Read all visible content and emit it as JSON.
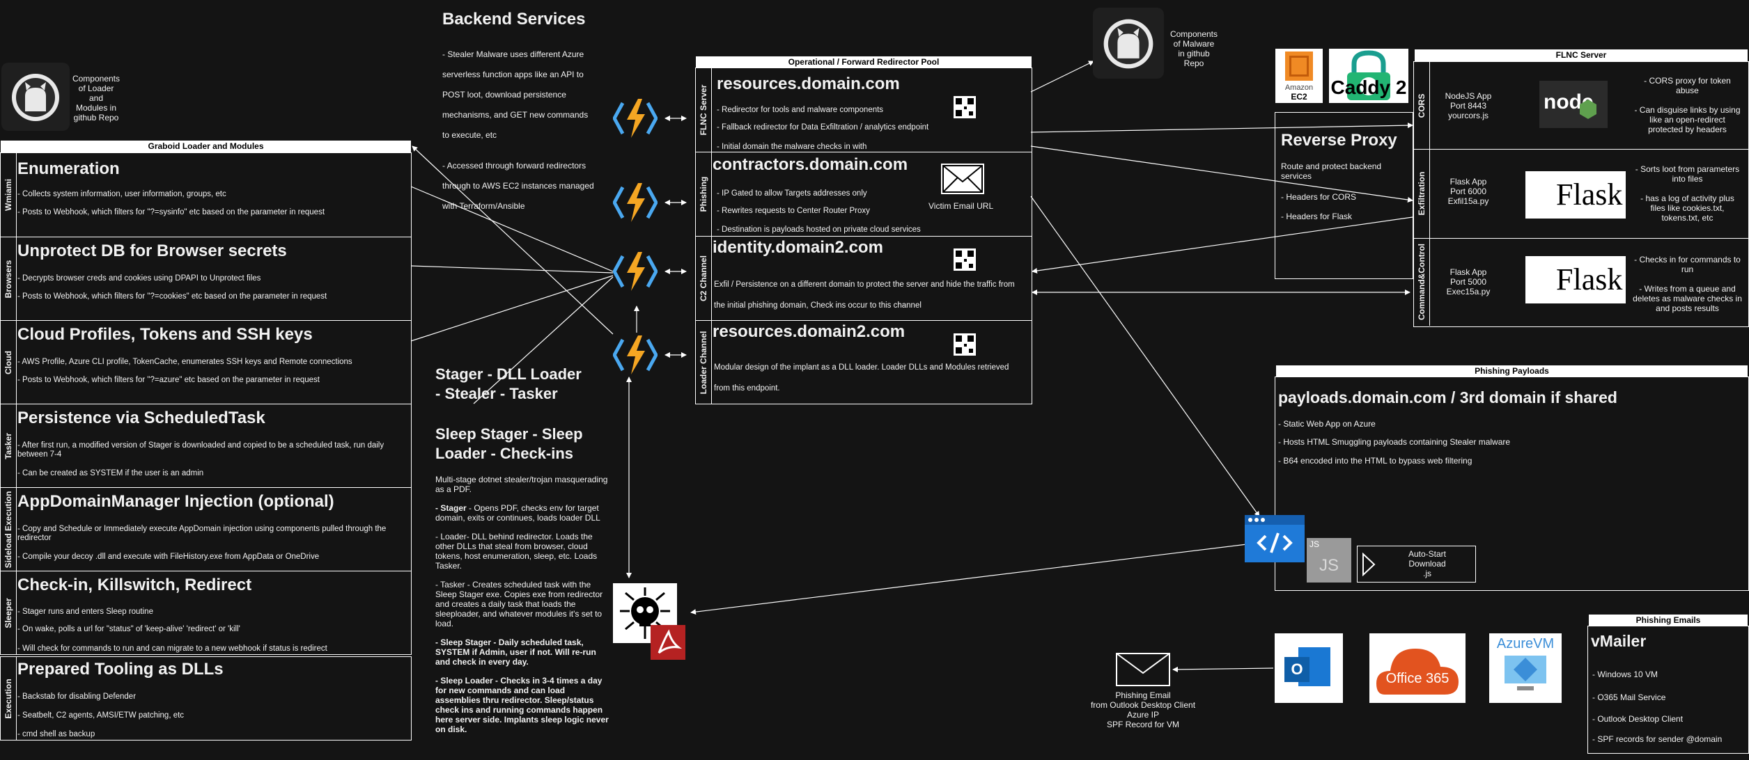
{
  "backend": {
    "title": "Backend Services",
    "lines": [
      "- Stealer Malware uses different Azure",
      "serverless function apps like an API to",
      "POST loot, download persistence",
      "mechanisms, and GET new commands",
      "to execute, etc",
      "- Accessed through forward redirectors",
      "through to AWS EC2 instances managed",
      "with Terraform/Ansible"
    ]
  },
  "repo_loader": {
    "lines": [
      "Components",
      "of Loader",
      "and",
      "Modules in",
      "github Repo"
    ]
  },
  "repo_malware": {
    "lines": [
      "Components",
      "of Malware",
      "in github",
      "Repo"
    ]
  },
  "graboid": {
    "header": "Graboid Loader and Modules",
    "lanes": [
      {
        "label": "Wmiami",
        "title": "Enumeration",
        "lines": [
          "- Collects system information, user information, groups, etc",
          "- Posts to Webhook, which filters for \"?=sysinfo\" etc based on the parameter in request"
        ]
      },
      {
        "label": "Browsers",
        "title": "Unprotect DB for Browser secrets",
        "lines": [
          "- Decrypts browser creds and cookies using DPAPI to Unprotect files",
          "- Posts to Webhook, which filters for \"?=cookies\" etc based on the parameter in request"
        ]
      },
      {
        "label": "Cloud",
        "title": "Cloud Profiles, Tokens and SSH keys",
        "lines": [
          "- AWS Profile, Azure CLI profile, TokenCache, enumerates SSH keys and Remote connections",
          "- Posts to Webhook, which filters for \"?=azure\" etc based on the parameter in request"
        ]
      },
      {
        "label": "Tasker",
        "title": "Persistence via ScheduledTask",
        "lines": [
          "- After first run, a modified version of Stager is downloaded and copied to be a scheduled task, run daily",
          "between 7-4",
          "- Can be created as SYSTEM if the user is an admin"
        ]
      },
      {
        "label": "Sideload Execution",
        "title": "AppDomainManager Injection (optional)",
        "lines": [
          "- Copy and Schedule or Immediately execute AppDomain injection using components pulled through the",
          "redirector",
          "- Compile your decoy .dll and execute with FileHistory.exe from AppData or OneDrive"
        ]
      },
      {
        "label": "Sleeper",
        "title": "Check-in,  Killswitch, Redirect",
        "lines": [
          "- Stager runs and enters Sleep routine",
          "- On wake,  polls a url for \"status\" of 'keep-alive' 'redirect' or 'kill'",
          "- Will check for commands to run and can migrate to a new webhook if status is redirect"
        ]
      },
      {
        "label": "Execution",
        "title": "Prepared Tooling as DLLs",
        "lines": [
          "- Backstab for disabling Defender",
          "- Seatbelt, C2 agents, AMSI/ETW patching, etc",
          "- cmd shell as backup"
        ]
      }
    ]
  },
  "stager": {
    "title1": "Stager - DLL Loader",
    "title2": "- Stealer - Tasker",
    "title3": "Sleep Stager - Sleep",
    "title4": "Loader - Check-ins",
    "intro": "Multi-stage dotnet stealer/trojan masquerading as a PDF.",
    "p_stager_b": " - Stager",
    "p_stager": " - Opens PDF, checks env for target domain, exits or continues, loads loader DLL",
    "p_loader": "- Loader- DLL behind redirector. Loads the other DLLs that steal from browser, cloud tokens, host enumeration, sleep, etc. Loads Tasker.",
    "p_tasker": "- Tasker - Creates scheduled task with the Sleep Stager exe. Copies exe from redirector and creates a daily task that loads the sleeploader, and whatever modules it's set to load.",
    "p_sleepstager": "- Sleep Stager - Daily scheduled task, SYSTEM if Admin, user if not. Will re-run and check in every day.",
    "p_sleeploader": "- Sleep Loader - Checks in 3-4 times a day for new commands and can load assemblies thru redirector. Sleep/status check ins and running commands happen here server side. Implants sleep logic never on disk."
  },
  "redirector": {
    "header": "Operational / Forward Redirector Pool",
    "lanes": [
      {
        "label": "FLNC Server",
        "title": "resources.domain.com",
        "lines": [
          "- Redirector for tools and malware components",
          "- Fallback redirector for Data Exfiltration / analytics endpoint",
          "- Initial domain the malware checks in with"
        ]
      },
      {
        "label": "Phishing",
        "title": "contractors.domain.com",
        "lines": [
          "- IP Gated to allow Targets addresses only",
          "- Rewrites requests to Center Router Proxy",
          "- Destination is payloads hosted on private cloud services"
        ],
        "extra": "Victim Email URL"
      },
      {
        "label": "C2 Channel",
        "title": "identity.domain2.com",
        "lines": [
          "Exfil / Persistence on a different domain to protect the server and hide the traffic from",
          "the initial phishing domain, Check ins occur to this channel"
        ]
      },
      {
        "label": "Loader Channel",
        "title": "resources.domain2.com",
        "lines": [
          "Modular design of the implant as a DLL loader. Loader DLLs and Modules retrieved",
          "from this endpoint."
        ]
      }
    ]
  },
  "logos": {
    "amazon": "Amazon",
    "ec2": "EC2",
    "caddy": "Caddy 2",
    "flask": "Flask",
    "azurevm": "AzureVM",
    "office365": "Office 365"
  },
  "reverse_proxy": {
    "title": "Reverse Proxy",
    "lines": [
      "Route and protect backend",
      "services",
      "- Headers for CORS",
      "- Headers for Flask"
    ]
  },
  "flnc": {
    "header": "FLNC Server",
    "rows": [
      {
        "label": "CORS",
        "app": [
          "NodeJS App",
          "Port 8443",
          "yourcors.js"
        ],
        "notes": [
          "- CORS proxy for token",
          "abuse",
          "- Can disguise links by using",
          "like an open-redirect",
          "protected by headers"
        ]
      },
      {
        "label": "Exfiltration",
        "app": [
          "Flask App",
          "Port 6000",
          "Exfil15a.py"
        ],
        "notes": [
          "- Sorts loot from parameters",
          "into files",
          "- has a log of activity plus",
          "files like cookies.txt,",
          "tokens.txt, etc"
        ]
      },
      {
        "label": "Command&Control",
        "app": [
          "Flask App",
          "Port 5000",
          "Exec15a.py"
        ],
        "notes": [
          "- Checks in for commands to",
          "run",
          "- Writes from a queue and",
          "deletes as malware checks in",
          "and posts results"
        ]
      }
    ]
  },
  "phishing_payloads": {
    "header": "Phishing Payloads",
    "title": "payloads.domain.com / 3rd domain if shared",
    "lines": [
      "- Static Web App on Azure",
      "- Hosts HTML Smuggling payloads containing Stealer malware",
      "- B64 encoded into the HTML to bypass web filtering"
    ],
    "autostart": [
      "Auto-Start",
      "Download",
      ".js"
    ],
    "js": "JS"
  },
  "phishing_email": {
    "lines": [
      "Phishing Email",
      "from Outlook Desktop Client",
      "Azure IP",
      "SPF Record for VM"
    ]
  },
  "vmailer": {
    "header": "Phishing Emails",
    "title": "vMailer",
    "lines": [
      "- Windows 10 VM",
      "- O365 Mail Service",
      "- Outlook Desktop Client",
      "- SPF records for sender @domain"
    ]
  }
}
